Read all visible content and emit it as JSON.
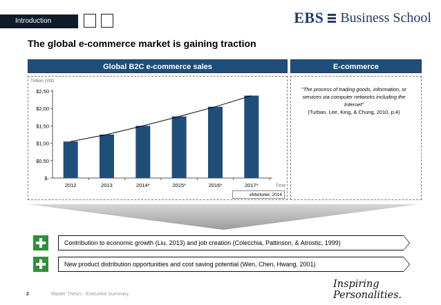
{
  "header": {
    "section_label": "Introduction",
    "logo": {
      "brand": "EBS",
      "name": "Business School"
    }
  },
  "title": "The global e-commerce market is gaining traction",
  "left_panel": {
    "header": "Global B2C e-commerce sales",
    "source": "eMarketer, 2014"
  },
  "right_panel": {
    "header": "E-commerce",
    "quote": "\"The process of trading goods, information, or services via computer networks including the Internet\"",
    "citation": "(Turban, Lee, King, & Chung, 2010, p.4)"
  },
  "chart_data": {
    "type": "bar",
    "ylabel": "Trillion USD",
    "xlabel": "Time",
    "categories": [
      "2012",
      "2013",
      "2014*",
      "2015*",
      "2016*",
      "2017*"
    ],
    "values": [
      1.05,
      1.25,
      1.5,
      1.77,
      2.05,
      2.37
    ],
    "ylim": [
      0,
      2.5
    ],
    "yticks": [
      {
        "value": 0,
        "label": "$-"
      },
      {
        "value": 0.5,
        "label": "$0,50"
      },
      {
        "value": 1.0,
        "label": "$1,00"
      },
      {
        "value": 1.5,
        "label": "$1,50"
      },
      {
        "value": 2.0,
        "label": "$2,00"
      },
      {
        "value": 2.5,
        "label": "$2,50"
      }
    ],
    "trendline": true,
    "grid": false,
    "bar_color": "#1f4e79"
  },
  "points": [
    "Contribution to economic growth (Liu, 2013) and job creation (Colecchia, Pattinson, & Atrostic, 1999)",
    "New product distribution opportunities and cost saving potential (Wen, Chen, Hwang, 2001)"
  ],
  "footer": {
    "page_number": "2",
    "text": "Master Thesis - Executive Summary",
    "slogan": "Inspiring Personalities."
  },
  "colors": {
    "accent": "#1f4e79",
    "plus": "#2f8f3a",
    "funnel": "#b8b8b8"
  }
}
